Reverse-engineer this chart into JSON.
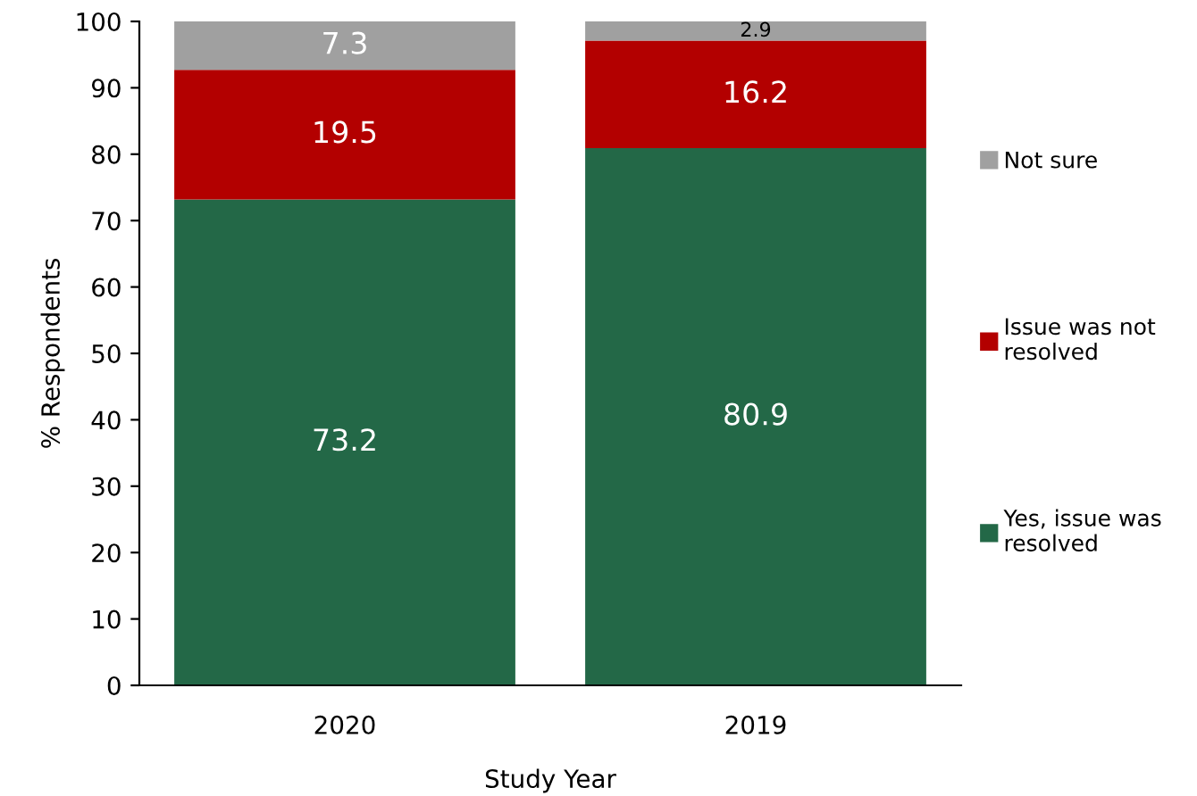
{
  "chart_data": {
    "type": "bar",
    "stacked": true,
    "xlabel": "Study Year",
    "ylabel": "% Respondents",
    "categories": [
      "2020",
      "2019"
    ],
    "series": [
      {
        "name": "Yes, issue was resolved",
        "color": "#236847",
        "values": [
          73.2,
          80.9
        ]
      },
      {
        "name": "Issue was not resolved",
        "color": "#b30000",
        "values": [
          19.5,
          16.2
        ]
      },
      {
        "name": "Not sure",
        "color": "#a0a0a0",
        "values": [
          7.3,
          2.9
        ]
      }
    ],
    "ylim": [
      0,
      100
    ],
    "yticks": [
      0,
      10,
      20,
      30,
      40,
      50,
      60,
      70,
      80,
      90,
      100
    ],
    "grid": false,
    "legend": "right",
    "data_labels": true
  }
}
